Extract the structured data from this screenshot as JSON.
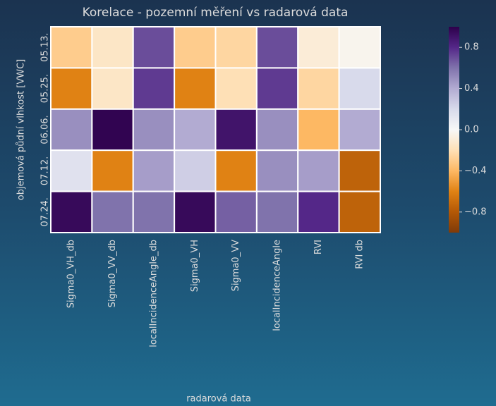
{
  "chart_data": {
    "type": "heatmap",
    "title": "Korelace - pozemní měření vs radarová data",
    "xlabel": "radarová data",
    "ylabel": "objemová půdní vlhkost [VWC]",
    "x": [
      "Sigma0_VH_db",
      "Sigma0_VV_db",
      "localIncidenceAngle_db",
      "Sigma0_VH",
      "Sigma0_VV",
      "localIncidenceAngle",
      "RVI",
      "RVI db"
    ],
    "y": [
      "05.13.",
      "05.25.",
      "06.06.",
      "07.12.",
      "07.24."
    ],
    "values": [
      [
        -0.3,
        -0.15,
        0.7,
        -0.3,
        -0.25,
        0.7,
        -0.1,
        -0.03
      ],
      [
        -0.6,
        -0.15,
        0.75,
        -0.6,
        -0.2,
        0.75,
        -0.25,
        0.2
      ],
      [
        0.5,
        0.98,
        0.5,
        0.4,
        0.9,
        0.5,
        -0.4,
        0.4
      ],
      [
        0.15,
        -0.6,
        0.45,
        0.25,
        -0.6,
        0.5,
        0.45,
        -0.75
      ],
      [
        0.95,
        0.6,
        0.6,
        0.95,
        0.65,
        0.6,
        0.8,
        -0.75
      ]
    ],
    "colormap": [
      "#7f3b08",
      "#b35806",
      "#e08214",
      "#fdb863",
      "#fee0b6",
      "#f7f7f7",
      "#d8daeb",
      "#b2abd2",
      "#8073ac",
      "#542788",
      "#2d004b"
    ],
    "vlim": [
      -1,
      1
    ],
    "colorbar_ticks": [
      0.8,
      0.4,
      {
        "value": 0,
        "label": "0.0"
      },
      {
        "value": -0.4,
        "label": "−0.4"
      },
      {
        "value": -0.8,
        "label": "−0.8"
      }
    ]
  }
}
